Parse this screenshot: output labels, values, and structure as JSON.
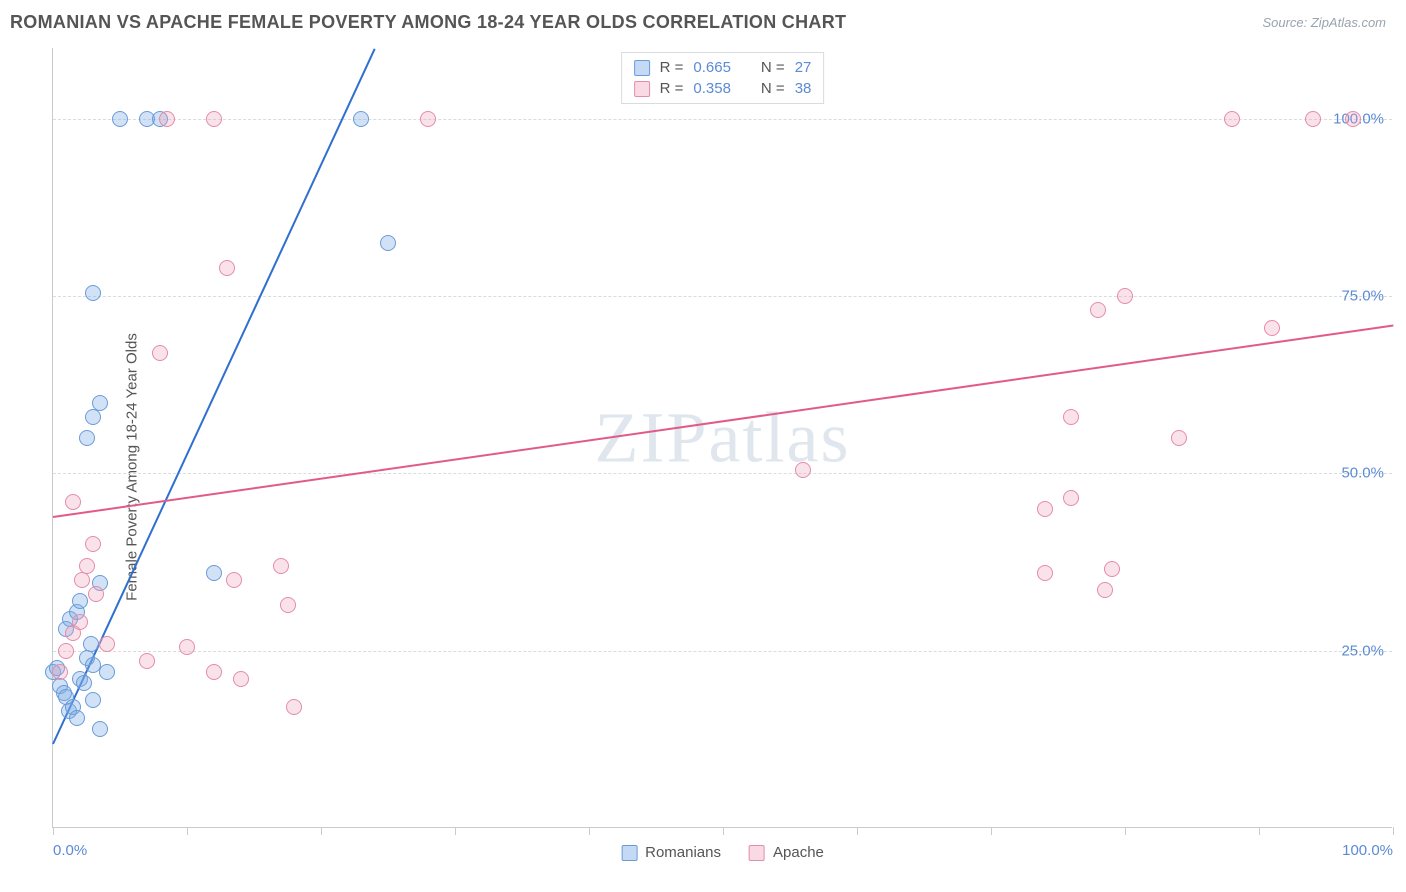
{
  "title": "ROMANIAN VS APACHE FEMALE POVERTY AMONG 18-24 YEAR OLDS CORRELATION CHART",
  "source": "Source: ZipAtlas.com",
  "watermark": "ZIPatlas",
  "y_axis_label": "Female Poverty Among 18-24 Year Olds",
  "chart": {
    "type": "scatter",
    "xlim": [
      0,
      100
    ],
    "ylim": [
      0,
      110
    ],
    "x_ticks": [
      0,
      10,
      20,
      30,
      40,
      50,
      60,
      70,
      80,
      90,
      100
    ],
    "x_tick_labels": {
      "0": "0.0%",
      "100": "100.0%"
    },
    "y_gridlines": [
      25,
      50,
      75,
      100
    ],
    "y_tick_labels": {
      "25": "25.0%",
      "50": "50.0%",
      "75": "75.0%",
      "100": "100.0%"
    },
    "background_color": "#ffffff",
    "grid_color": "#d8dce0",
    "axis_color": "#c8ccd0",
    "label_color": "#5b8bd4",
    "title_color": "#555555",
    "title_fontsize": 18,
    "label_fontsize": 15,
    "marker_radius": 8,
    "series": [
      {
        "name": "Romanians",
        "key": "a",
        "fill": "rgba(122,171,230,0.35)",
        "stroke": "#6a9bd8",
        "trend_color": "#2f6fd0",
        "r": 0.665,
        "n": 27,
        "trend": {
          "x1": 0,
          "y1": 12,
          "x2": 24,
          "y2": 110
        },
        "points": [
          [
            0,
            22
          ],
          [
            0.3,
            22.5
          ],
          [
            0.5,
            20
          ],
          [
            0.8,
            19
          ],
          [
            1,
            18.5
          ],
          [
            1.2,
            16.5
          ],
          [
            1.5,
            17
          ],
          [
            1.8,
            15.5
          ],
          [
            2,
            21
          ],
          [
            2.3,
            20.5
          ],
          [
            2.5,
            24
          ],
          [
            2.8,
            26
          ],
          [
            3,
            23
          ],
          [
            3,
            18
          ],
          [
            3.5,
            14
          ],
          [
            4,
            22
          ],
          [
            1,
            28
          ],
          [
            1.3,
            29.5
          ],
          [
            1.8,
            30.5
          ],
          [
            2,
            32
          ],
          [
            3.5,
            34.5
          ],
          [
            2.5,
            55
          ],
          [
            3,
            58
          ],
          [
            3.5,
            60
          ],
          [
            3,
            75.5
          ],
          [
            5,
            100
          ],
          [
            7,
            100
          ],
          [
            8,
            100
          ],
          [
            23,
            100
          ],
          [
            25,
            82.5
          ],
          [
            12,
            36
          ]
        ]
      },
      {
        "name": "Apache",
        "key": "b",
        "fill": "rgba(240,160,185,0.30)",
        "stroke": "#e58ca9",
        "trend_color": "#e25a87",
        "r": 0.358,
        "n": 38,
        "trend": {
          "x1": 0,
          "y1": 44,
          "x2": 100,
          "y2": 71
        },
        "points": [
          [
            0.5,
            22
          ],
          [
            1,
            25
          ],
          [
            1.5,
            27.5
          ],
          [
            2,
            29
          ],
          [
            2.2,
            35
          ],
          [
            2.5,
            37
          ],
          [
            3,
            40
          ],
          [
            3.2,
            33
          ],
          [
            1.5,
            46
          ],
          [
            4,
            26
          ],
          [
            7,
            23.5
          ],
          [
            10,
            25.5
          ],
          [
            12,
            22
          ],
          [
            14,
            21
          ],
          [
            18,
            17
          ],
          [
            8,
            67
          ],
          [
            13,
            79
          ],
          [
            13.5,
            35
          ],
          [
            17,
            37
          ],
          [
            17.5,
            31.5
          ],
          [
            8.5,
            100
          ],
          [
            12,
            100
          ],
          [
            28,
            100
          ],
          [
            56,
            50.5
          ],
          [
            74,
            45
          ],
          [
            76,
            46.5
          ],
          [
            74,
            36
          ],
          [
            78.5,
            33.5
          ],
          [
            79,
            36.5
          ],
          [
            76,
            58
          ],
          [
            78,
            73
          ],
          [
            80,
            75
          ],
          [
            84,
            55
          ],
          [
            88,
            100
          ],
          [
            91,
            70.5
          ],
          [
            94,
            100
          ],
          [
            97,
            100
          ]
        ]
      }
    ]
  },
  "legend_top": [
    {
      "swatch": "a",
      "r_label": "R =",
      "r": "0.665",
      "n_label": "N =",
      "n": "27"
    },
    {
      "swatch": "b",
      "r_label": "R =",
      "r": "0.358",
      "n_label": "N =",
      "n": "38"
    }
  ],
  "legend_bottom": [
    {
      "swatch": "a",
      "label": "Romanians"
    },
    {
      "swatch": "b",
      "label": "Apache"
    }
  ]
}
